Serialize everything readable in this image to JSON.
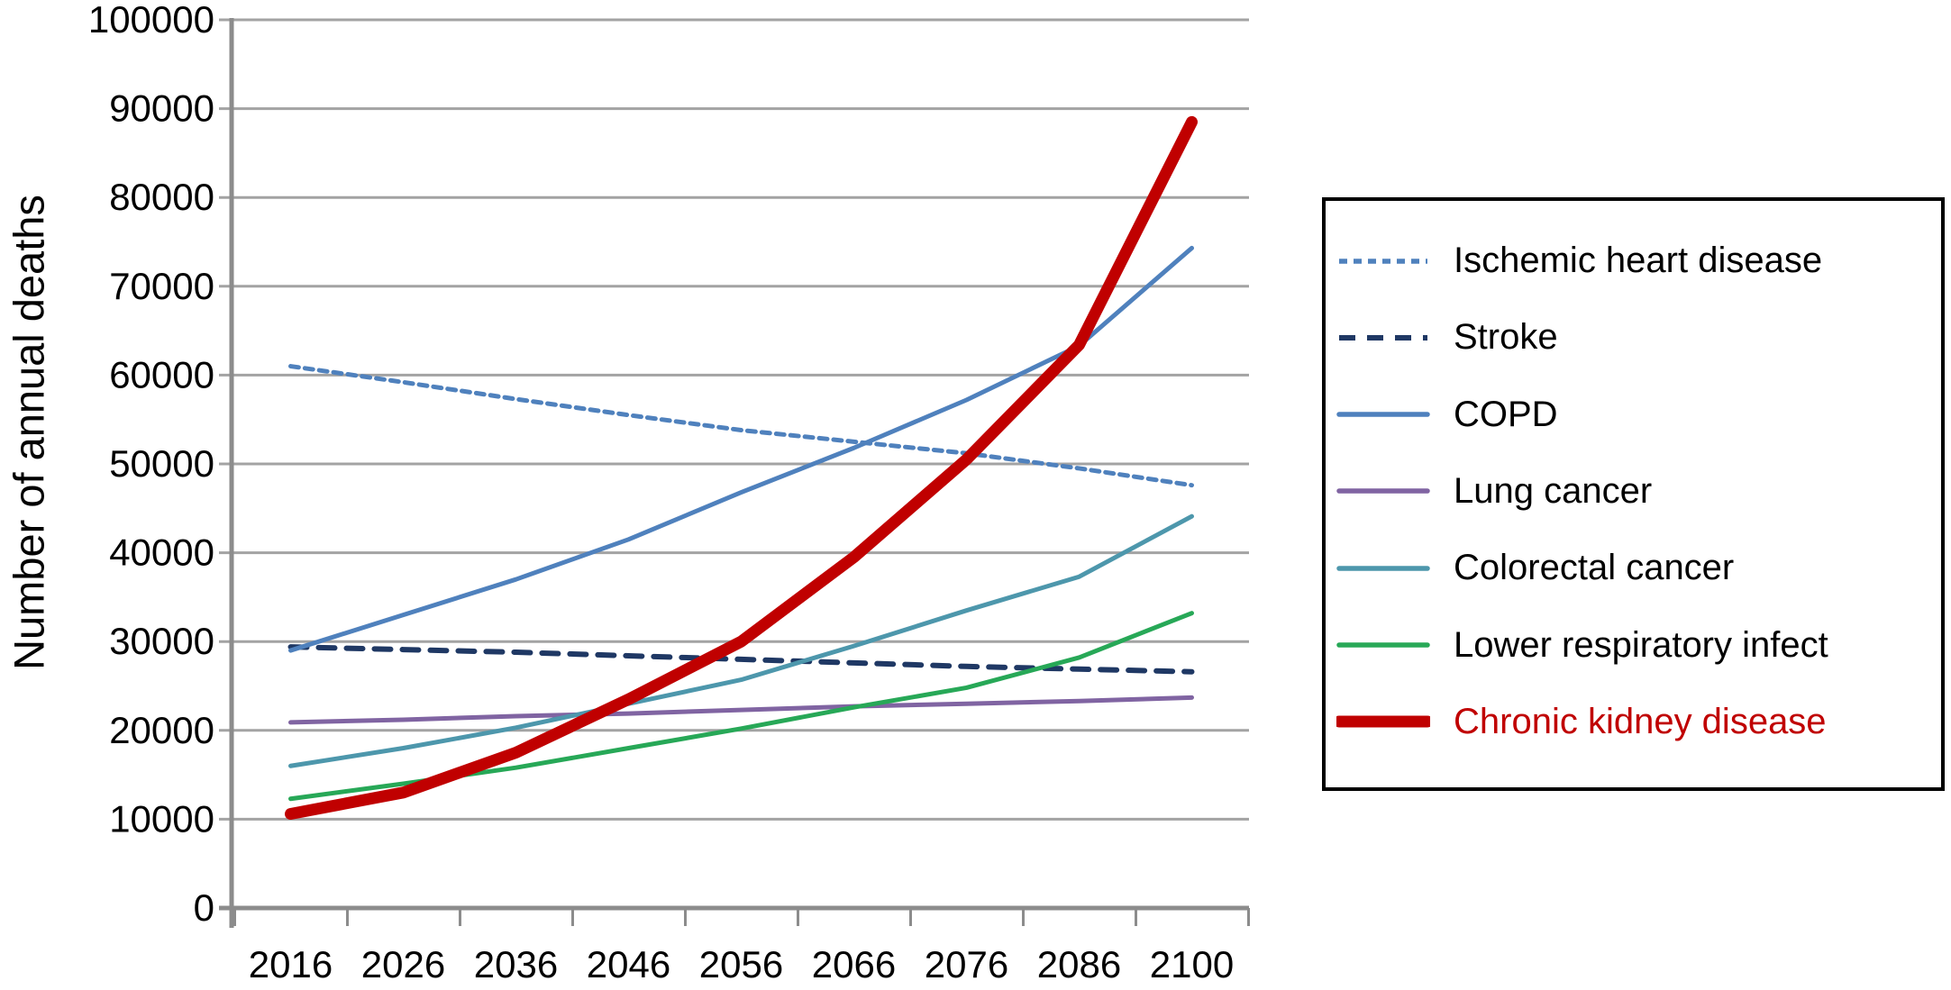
{
  "chart_data": {
    "type": "line",
    "title": "",
    "xlabel": "",
    "ylabel": "Number of annual deaths",
    "categories": [
      "2016",
      "2026",
      "2036",
      "2046",
      "2056",
      "2066",
      "2076",
      "2086",
      "2100"
    ],
    "yticks": [
      0,
      10000,
      20000,
      30000,
      40000,
      50000,
      60000,
      70000,
      80000,
      90000,
      100000
    ],
    "ylim": [
      0,
      100000
    ],
    "grid": "horizontal",
    "legend_position": "right",
    "colors": {
      "grid": "#a3a3a3",
      "axis": "#8c8c8c",
      "legend_border": "#000000",
      "accent_red": "#c00000"
    },
    "series": [
      {
        "name": "Ischemic heart disease",
        "color": "#4f81bd",
        "width": 5,
        "dash": "9 7",
        "label_color": "#000000",
        "values": [
          61000,
          59200,
          57300,
          55500,
          53800,
          52500,
          51200,
          49500,
          47600
        ]
      },
      {
        "name": "Stroke",
        "color": "#1f3864",
        "width": 6,
        "dash": "18 13",
        "label_color": "#000000",
        "values": [
          29400,
          29100,
          28800,
          28400,
          28000,
          27600,
          27200,
          26900,
          26600
        ]
      },
      {
        "name": "COPD",
        "color": "#4f81bd",
        "width": 5,
        "dash": null,
        "label_color": "#000000",
        "values": [
          29000,
          33000,
          37000,
          41500,
          46800,
          51800,
          57200,
          63300,
          74300
        ]
      },
      {
        "name": "Lung cancer",
        "color": "#8064a2",
        "width": 5,
        "dash": null,
        "label_color": "#000000",
        "values": [
          20900,
          21200,
          21600,
          21900,
          22300,
          22700,
          23000,
          23300,
          23700
        ]
      },
      {
        "name": "Colorectal cancer",
        "color": "#4d97ac",
        "width": 5,
        "dash": null,
        "label_color": "#000000",
        "values": [
          16000,
          18000,
          20300,
          23000,
          25700,
          29500,
          33500,
          37300,
          44100
        ]
      },
      {
        "name": "Lower respiratory infect",
        "color": "#27a857",
        "width": 5,
        "dash": null,
        "label_color": "#000000",
        "values": [
          12300,
          14000,
          15800,
          18000,
          20200,
          22600,
          24800,
          28200,
          33200
        ]
      },
      {
        "name": "Chronic kidney disease",
        "color": "#c00000",
        "width": 13,
        "dash": null,
        "label_color": "#c00000",
        "values": [
          10600,
          13000,
          17500,
          23500,
          30000,
          39500,
          50500,
          63400,
          88500
        ]
      }
    ]
  }
}
